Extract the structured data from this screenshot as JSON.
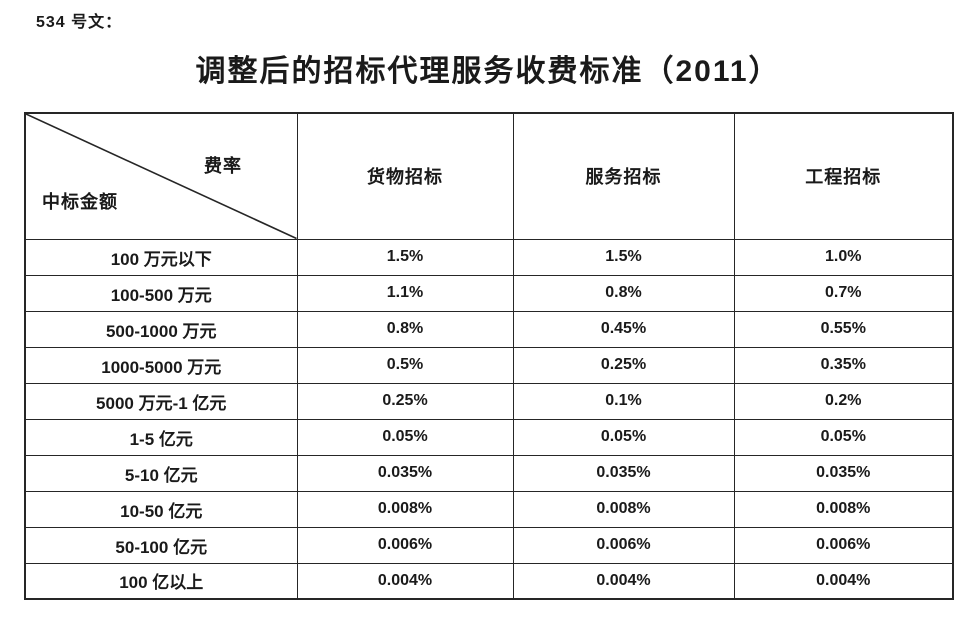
{
  "doc": {
    "ref": "534 号文：",
    "title": "调整后的招标代理服务收费标准（2011）"
  },
  "table": {
    "corner_top_right": "费率",
    "corner_bottom_left": "中标金额",
    "columns": [
      "货物招标",
      "服务招标",
      "工程招标"
    ],
    "rows": [
      {
        "label": "100 万元以下",
        "values": [
          "1.5%",
          "1.5%",
          "1.0%"
        ]
      },
      {
        "label": "100-500 万元",
        "values": [
          "1.1%",
          "0.8%",
          "0.7%"
        ]
      },
      {
        "label": "500-1000 万元",
        "values": [
          "0.8%",
          "0.45%",
          "0.55%"
        ]
      },
      {
        "label": "1000-5000 万元",
        "values": [
          "0.5%",
          "0.25%",
          "0.35%"
        ]
      },
      {
        "label": "5000 万元-1 亿元",
        "values": [
          "0.25%",
          "0.1%",
          "0.2%"
        ]
      },
      {
        "label": "1-5 亿元",
        "values": [
          "0.05%",
          "0.05%",
          "0.05%"
        ]
      },
      {
        "label": "5-10 亿元",
        "values": [
          "0.035%",
          "0.035%",
          "0.035%"
        ]
      },
      {
        "label": "10-50 亿元",
        "values": [
          "0.008%",
          "0.008%",
          "0.008%"
        ]
      },
      {
        "label": "50-100 亿元",
        "values": [
          "0.006%",
          "0.006%",
          "0.006%"
        ]
      },
      {
        "label": "100 亿以上",
        "values": [
          "0.004%",
          "0.004%",
          "0.004%"
        ]
      }
    ],
    "colors": {
      "border": "#262626",
      "text": "#1a1a1a",
      "background": "#ffffff"
    }
  }
}
